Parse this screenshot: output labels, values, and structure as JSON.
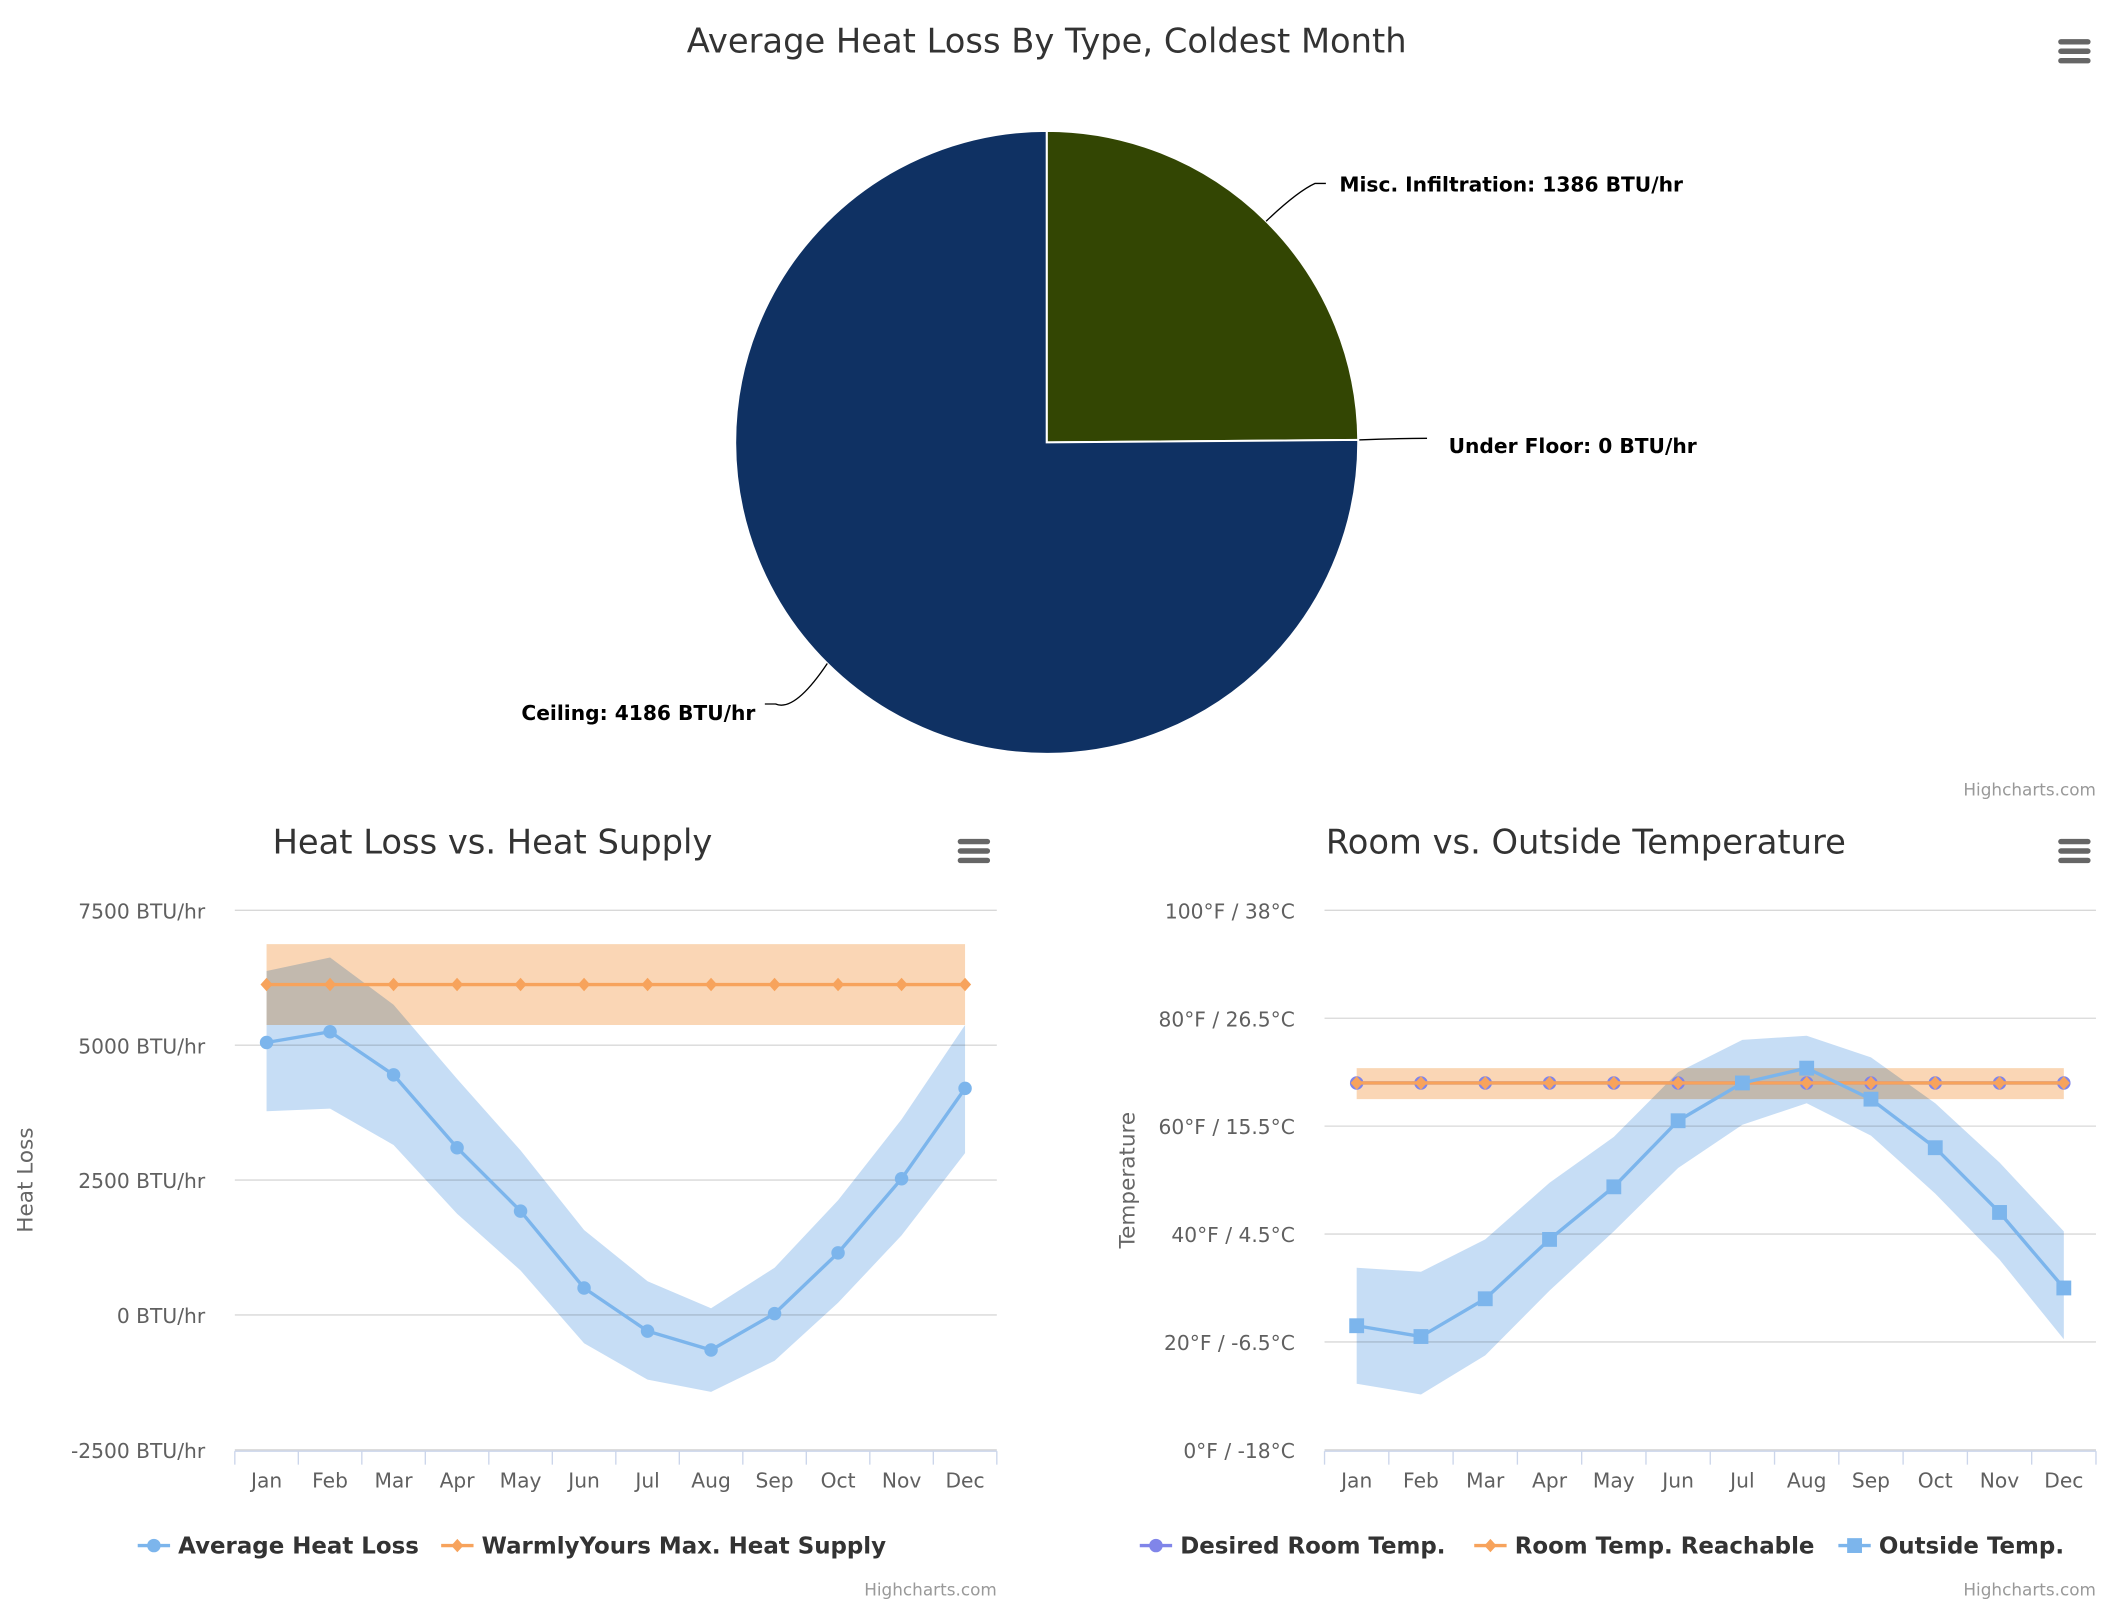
{
  "colors": {
    "ceiling": "#0f3163",
    "misc": "#334603",
    "underfloor": "#7cb5ec",
    "blue": "#7cb5ec",
    "blueRange": "#bcd7f4",
    "orange": "#f7a35c",
    "orangeRange": "#f9cfa8",
    "purple": "#8085e9",
    "grid": "#d8d8d8"
  },
  "credit": "Highcharts.com",
  "menu_icon": "hamburger-menu-icon",
  "chart_data": [
    {
      "type": "pie",
      "title": "Average Heat Loss By Type, Coldest Month",
      "unit": "BTU/hr",
      "slices": [
        {
          "name": "Misc. Infiltration",
          "value": 1386,
          "label": "Misc. Infiltration: 1386 BTU/hr"
        },
        {
          "name": "Under Floor",
          "value": 0,
          "label": "Under Floor: 0 BTU/hr"
        },
        {
          "name": "Ceiling",
          "value": 4186,
          "label": "Ceiling: 4186 BTU/hr"
        }
      ]
    },
    {
      "type": "line",
      "title": "Heat Loss vs. Heat Supply",
      "ylabel": "Heat Loss",
      "ylim": [
        -2500,
        7500
      ],
      "yticks": [
        -2500,
        0,
        2500,
        5000,
        7500
      ],
      "ytick_labels": [
        "-2500 BTU/hr",
        "0 BTU/hr",
        "2500 BTU/hr",
        "5000 BTU/hr",
        "7500 BTU/hr"
      ],
      "categories": [
        "Jan",
        "Feb",
        "Mar",
        "Apr",
        "May",
        "Jun",
        "Jul",
        "Aug",
        "Sep",
        "Oct",
        "Nov",
        "Dec"
      ],
      "series": [
        {
          "name": "Average Heat Loss",
          "marker": "circle",
          "values": [
            5050,
            5250,
            4450,
            3100,
            1925,
            500,
            -300,
            -650,
            25,
            1150,
            2525,
            4200
          ],
          "range_low": [
            3775,
            3825,
            3150,
            1875,
            825,
            -525,
            -1200,
            -1425,
            -850,
            225,
            1475,
            3000
          ],
          "range_high": [
            6375,
            6625,
            5750,
            4375,
            3050,
            1575,
            625,
            125,
            875,
            2125,
            3625,
            5375
          ]
        },
        {
          "name": "WarmlyYours Max. Heat Supply",
          "marker": "diamond",
          "values": [
            6125,
            6125,
            6125,
            6125,
            6125,
            6125,
            6125,
            6125,
            6125,
            6125,
            6125,
            6125
          ],
          "range_low": [
            5375,
            5375,
            5375,
            5375,
            5375,
            5375,
            5375,
            5375,
            5375,
            5375,
            5375,
            5375
          ],
          "range_high": [
            6875,
            6875,
            6875,
            6875,
            6875,
            6875,
            6875,
            6875,
            6875,
            6875,
            6875,
            6875
          ]
        }
      ],
      "legend": "bottom"
    },
    {
      "type": "line",
      "title": "Room vs. Outside Temperature",
      "ylabel": "Temperature",
      "ylim": [
        0,
        100
      ],
      "yticks": [
        0,
        20,
        40,
        60,
        80,
        100
      ],
      "ytick_labels": [
        "0°F / -18°C",
        "20°F / -6.5°C",
        "40°F / 4.5°C",
        "60°F / 15.5°C",
        "80°F / 26.5°C",
        "100°F / 38°C"
      ],
      "categories": [
        "Jan",
        "Feb",
        "Mar",
        "Apr",
        "May",
        "Jun",
        "Jul",
        "Aug",
        "Sep",
        "Oct",
        "Nov",
        "Dec"
      ],
      "series": [
        {
          "name": "Desired Room Temp.",
          "marker": "circle",
          "values": [
            68,
            68,
            68,
            68,
            68,
            68,
            68,
            68,
            68,
            68,
            68,
            68
          ]
        },
        {
          "name": "Room Temp. Reachable",
          "marker": "diamond",
          "values": [
            68,
            68,
            68,
            68,
            68,
            68,
            68,
            68,
            68,
            68,
            68,
            68
          ],
          "range_low": [
            65,
            65,
            65,
            65,
            65,
            65,
            65,
            65,
            65,
            65,
            65,
            65
          ],
          "range_high": [
            70.75,
            70.75,
            70.75,
            70.75,
            70.75,
            70.75,
            70.75,
            70.75,
            70.75,
            70.75,
            70.75,
            70.75
          ]
        },
        {
          "name": "Outside Temp.",
          "marker": "square",
          "values": [
            23,
            21,
            28,
            39,
            48.75,
            61,
            68,
            70.75,
            65,
            56,
            44,
            30
          ],
          "range_low": [
            12.25,
            10.25,
            17.5,
            29.5,
            40.5,
            52.25,
            60.25,
            64.25,
            58.25,
            47.5,
            35.25,
            20.5
          ],
          "range_high": [
            33.75,
            33,
            39,
            49.5,
            58,
            70,
            76,
            76.75,
            72.75,
            64.25,
            53.25,
            40.5
          ]
        }
      ],
      "legend": "bottom"
    }
  ]
}
